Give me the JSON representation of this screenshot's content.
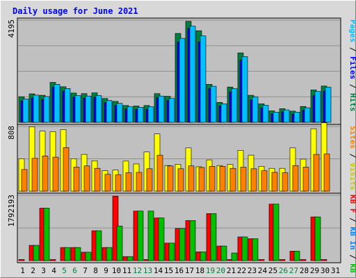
{
  "title": "Daily usage for June 2021",
  "colors": {
    "background": "#d8d8d8",
    "panel": "#c0c0c0",
    "grid": "#909090",
    "title": "#0000ff",
    "weekday_label": "#000000",
    "weekend_label": "#008040",
    "hits": "#008040",
    "files": "#0000ff",
    "pages": "#00c0ff",
    "visits": "#ffff00",
    "sites": "#ff8000",
    "kb_f": "#ff0000",
    "kb_in": "#0080ff",
    "kb_out": "#00c000"
  },
  "legends": {
    "panel1": [
      {
        "text": "Pages",
        "color": "#00c0ff"
      },
      {
        "text": " / ",
        "color": "#000000"
      },
      {
        "text": "Files",
        "color": "#0000ff"
      },
      {
        "text": " / ",
        "color": "#000000"
      },
      {
        "text": "Hits",
        "color": "#008040"
      }
    ],
    "panel2": [
      {
        "text": "Sites",
        "color": "#ff8000"
      },
      {
        "text": " / ",
        "color": "#000000"
      },
      {
        "text": "Visits",
        "color": "#c8c800"
      }
    ],
    "panel3": [
      {
        "text": "KB F",
        "color": "#ff0000"
      },
      {
        "text": " / ",
        "color": "#000000"
      },
      {
        "text": "KB In",
        "color": "#0080ff"
      },
      {
        "text": " / ",
        "color": "#000000"
      },
      {
        "text": "KB Out",
        "color": "#00c000"
      }
    ]
  },
  "chart_data": {
    "type": "bar",
    "title": "Daily usage for June 2021",
    "categories": [
      "1",
      "2",
      "3",
      "4",
      "5",
      "6",
      "7",
      "8",
      "9",
      "10",
      "11",
      "12",
      "13",
      "14",
      "15",
      "16",
      "17",
      "18",
      "19",
      "20",
      "21",
      "22",
      "23",
      "24",
      "25",
      "26",
      "27",
      "28",
      "29",
      "30",
      "31"
    ],
    "weekend_days": [
      "5",
      "6",
      "12",
      "13",
      "19",
      "20",
      "26",
      "27"
    ],
    "panels": [
      {
        "ymax_label": "4195",
        "ymax": 4195,
        "series": [
          {
            "name": "Hits",
            "values": [
              1050,
              1170,
              1110,
              1640,
              1460,
              1200,
              1180,
              1210,
              980,
              860,
              690,
              670,
              690,
              1180,
              1070,
              3650,
              4150,
              3760,
              1560,
              820,
              1450,
              2850,
              1110,
              760,
              470,
              560,
              460,
              650,
              1330,
              1490,
              0
            ]
          },
          {
            "name": "Files",
            "values": [
              880,
              1000,
              940,
              1450,
              1280,
              1040,
              1000,
              1030,
              820,
              700,
              550,
              540,
              540,
              1010,
              900,
              3300,
              3860,
              3300,
              1380,
              670,
              1250,
              2550,
              920,
              600,
              350,
              430,
              340,
              500,
              1100,
              1280,
              0
            ]
          },
          {
            "name": "Pages",
            "values": [
              960,
              1120,
              1060,
              1560,
              1390,
              1100,
              1080,
              1100,
              900,
              780,
              640,
              620,
              640,
              1080,
              980,
              3450,
              3950,
              3550,
              1480,
              760,
              1380,
              2700,
              1040,
              700,
              420,
              510,
              420,
              600,
              1270,
              1440,
              0
            ]
          }
        ]
      },
      {
        "ymax_label": "808",
        "ymax": 808,
        "series": [
          {
            "name": "Visits",
            "values": [
              405,
              805,
              750,
              745,
              770,
              405,
              460,
              380,
              255,
              265,
              375,
              340,
              490,
              715,
              320,
              335,
              540,
              305,
              390,
              320,
              335,
              510,
              450,
              310,
              285,
              285,
              540,
              400,
              780,
              855,
              0
            ]
          },
          {
            "name": "Sites",
            "values": [
              270,
              410,
              440,
              425,
              545,
              300,
              315,
              285,
              210,
              205,
              230,
              235,
              280,
              450,
              315,
              280,
              315,
              295,
              310,
              310,
              285,
              300,
              280,
              255,
              235,
              230,
              320,
              300,
              460,
              465,
              0
            ]
          }
        ]
      },
      {
        "ymax_label": "1792193",
        "ymax": 1792193,
        "series": [
          {
            "name": "KB F",
            "values": [
              30000,
              420000,
              1440000,
              30000,
              360000,
              360000,
              230000,
              820000,
              360000,
              1770000,
              110000,
              1360000,
              30000,
              1170000,
              480000,
              880000,
              1100000,
              240000,
              1290000,
              400000,
              30000,
              650000,
              600000,
              30000,
              1550000,
              30000,
              260000,
              30000,
              1200000,
              30000,
              0
            ]
          },
          {
            "name": "KB In",
            "values": [
              0,
              0,
              0,
              0,
              0,
              0,
              0,
              0,
              0,
              0,
              0,
              0,
              0,
              0,
              0,
              0,
              0,
              0,
              0,
              0,
              0,
              0,
              0,
              0,
              0,
              0,
              0,
              0,
              0,
              0,
              0
            ]
          },
          {
            "name": "KB Out",
            "values": [
              0,
              420000,
              1440000,
              0,
              360000,
              360000,
              230000,
              820000,
              360000,
              950000,
              110000,
              1360000,
              1360000,
              1170000,
              480000,
              880000,
              1100000,
              240000,
              1290000,
              400000,
              210000,
              650000,
              600000,
              0,
              1550000,
              0,
              260000,
              0,
              1200000,
              0,
              0
            ]
          }
        ]
      }
    ]
  }
}
